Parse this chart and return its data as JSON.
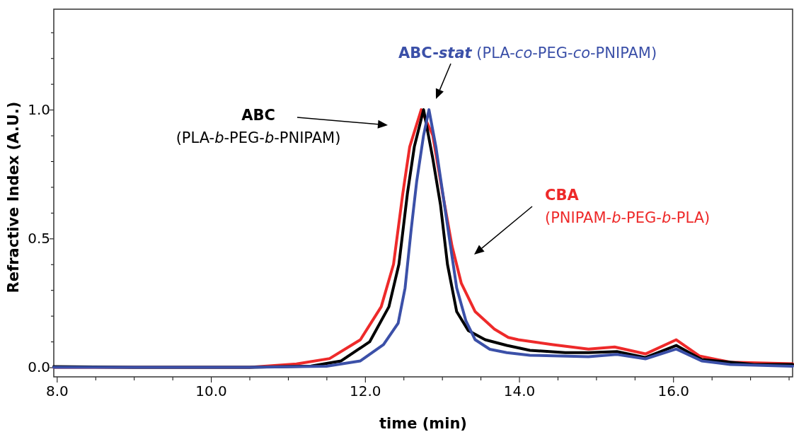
{
  "chart_data": {
    "type": "line",
    "xlabel": "time (min)",
    "ylabel": "Refractive Index (A.U.)",
    "xlim": [
      7.96,
      17.55
    ],
    "ylim": [
      -0.037,
      1.39
    ],
    "xticks": [
      {
        "value": 8,
        "label": "8.0"
      },
      {
        "value": 8.5,
        "label": null
      },
      {
        "value": 9,
        "label": null
      },
      {
        "value": 9.5,
        "label": null
      },
      {
        "value": 10,
        "label": "10.0"
      },
      {
        "value": 10.5,
        "label": null
      },
      {
        "value": 11,
        "label": null
      },
      {
        "value": 11.5,
        "label": null
      },
      {
        "value": 12,
        "label": "12.0"
      },
      {
        "value": 12.5,
        "label": null
      },
      {
        "value": 13,
        "label": null
      },
      {
        "value": 13.5,
        "label": null
      },
      {
        "value": 14,
        "label": "14.0"
      },
      {
        "value": 14.5,
        "label": null
      },
      {
        "value": 15,
        "label": null
      },
      {
        "value": 15.5,
        "label": null
      },
      {
        "value": 16,
        "label": "16.0"
      },
      {
        "value": 16.5,
        "label": null
      },
      {
        "value": 17,
        "label": null
      },
      {
        "value": 17.5,
        "label": null
      }
    ],
    "yticks": [
      {
        "value": 0,
        "label": "0.0"
      },
      {
        "value": 0.1,
        "label": null
      },
      {
        "value": 0.2,
        "label": null
      },
      {
        "value": 0.3,
        "label": null
      },
      {
        "value": 0.4,
        "label": null
      },
      {
        "value": 0.5,
        "label": "0.5"
      },
      {
        "value": 0.6,
        "label": null
      },
      {
        "value": 0.7,
        "label": null
      },
      {
        "value": 0.8,
        "label": null
      },
      {
        "value": 0.9,
        "label": null
      },
      {
        "value": 1,
        "label": "1.0"
      },
      {
        "value": 1.1,
        "label": null
      },
      {
        "value": 1.2,
        "label": null
      },
      {
        "value": 1.3,
        "label": null
      }
    ],
    "grid": false,
    "legend": false,
    "marker": "none",
    "line_style": "solid",
    "series": [
      {
        "name": "ABC (PLA-b-PEG-b-PNIPAM)",
        "color": "#000000",
        "x": [
          7.96,
          9.0,
          10.5,
          11.3,
          11.69,
          12.06,
          12.31,
          12.44,
          12.55,
          12.64,
          12.76,
          12.88,
          12.98,
          13.07,
          13.19,
          13.34,
          13.56,
          13.84,
          14.14,
          14.6,
          14.9,
          15.27,
          15.64,
          16.04,
          16.37,
          17.05,
          17.55
        ],
        "values": [
          0.003,
          0.0,
          0.0,
          0.005,
          0.025,
          0.099,
          0.235,
          0.4,
          0.674,
          0.856,
          1.0,
          0.81,
          0.63,
          0.4,
          0.216,
          0.143,
          0.107,
          0.085,
          0.066,
          0.057,
          0.057,
          0.061,
          0.038,
          0.085,
          0.03,
          0.011,
          0.011
        ]
      },
      {
        "name": "ABC-stat (PLA-co-PEG-co-PNIPAM)",
        "color": "#3b50a8",
        "x": [
          7.96,
          9.0,
          10.5,
          11.5,
          11.94,
          12.24,
          12.43,
          12.52,
          12.6,
          12.67,
          12.76,
          12.83,
          12.92,
          13.01,
          13.1,
          13.19,
          13.31,
          13.43,
          13.62,
          13.84,
          14.14,
          14.9,
          15.27,
          15.64,
          16.04,
          16.37,
          16.74,
          17.55
        ],
        "values": [
          0.0,
          0.0,
          0.0,
          0.004,
          0.025,
          0.088,
          0.171,
          0.308,
          0.537,
          0.72,
          0.9,
          1.0,
          0.856,
          0.674,
          0.49,
          0.308,
          0.18,
          0.107,
          0.07,
          0.057,
          0.047,
          0.041,
          0.05,
          0.033,
          0.071,
          0.025,
          0.011,
          0.004
        ]
      },
      {
        "name": "CBA (PNIPAM-b-PEG-b-PLA)",
        "color": "#ee2a2a",
        "x": [
          7.96,
          9.0,
          10.5,
          11.11,
          11.54,
          11.94,
          12.21,
          12.37,
          12.49,
          12.58,
          12.73,
          12.88,
          13.01,
          13.13,
          13.25,
          13.43,
          13.68,
          13.86,
          13.99,
          14.44,
          14.9,
          15.24,
          15.64,
          16.04,
          16.34,
          16.74,
          17.55
        ],
        "values": [
          0.0,
          0.0,
          0.0,
          0.013,
          0.034,
          0.107,
          0.235,
          0.4,
          0.674,
          0.856,
          1.0,
          0.9,
          0.67,
          0.47,
          0.326,
          0.216,
          0.148,
          0.116,
          0.107,
          0.088,
          0.071,
          0.079,
          0.052,
          0.107,
          0.044,
          0.02,
          0.014
        ]
      }
    ]
  }
}
